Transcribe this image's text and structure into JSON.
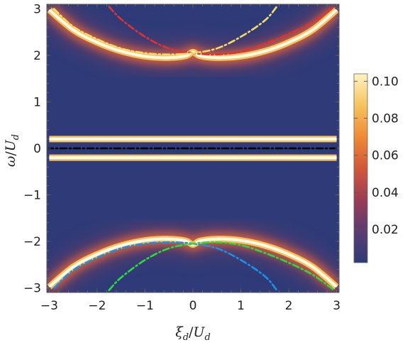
{
  "chart_data": {
    "type": "heatmap",
    "title": "",
    "xlabel": {
      "main": "ξ",
      "sub": "d",
      "slash": "/",
      "main2": "U",
      "sub2": "d"
    },
    "ylabel": {
      "main": "ω",
      "sub": "",
      "slash": "/",
      "main2": "U",
      "sub2": "d"
    },
    "xlim": [
      -3.05,
      3.05
    ],
    "ylim": [
      -3.1,
      3.1
    ],
    "x_ticks": [
      -3,
      -2,
      -1,
      0,
      1,
      2,
      3
    ],
    "x_tick_labels": [
      "−3",
      "−2",
      "−1",
      "0",
      "1",
      "2",
      "3"
    ],
    "y_ticks": [
      -3,
      -2,
      -1,
      0,
      1,
      2,
      3
    ],
    "y_tick_labels": [
      "−3",
      "−2",
      "−1",
      "0",
      "1",
      "2",
      "3"
    ],
    "colorbar": {
      "ticks": [
        0.02,
        0.04,
        0.06,
        0.08,
        0.1
      ],
      "tick_labels": [
        "0.02",
        "0.04",
        "0.06",
        "0.08",
        "0.10"
      ],
      "range": [
        0.002,
        0.104
      ],
      "colors": [
        "#2e3b78",
        "#5a3c72",
        "#9a3d55",
        "#d2573a",
        "#ef8a36",
        "#f7c35e",
        "#fff3c2"
      ]
    },
    "background_color": "#2e3b78",
    "bright_bands": [
      {
        "name": "upper",
        "points": [
          [
            -3,
            2.98
          ],
          [
            -2.5,
            2.55
          ],
          [
            -2,
            2.28
          ],
          [
            -1.5,
            2.09
          ],
          [
            -1,
            1.98
          ],
          [
            -0.5,
            1.95
          ],
          [
            -0.15,
            1.99
          ],
          [
            0,
            2.07
          ],
          [
            0.15,
            1.99
          ],
          [
            0.5,
            1.95
          ],
          [
            1,
            1.98
          ],
          [
            1.5,
            2.09
          ],
          [
            2,
            2.28
          ],
          [
            2.5,
            2.55
          ],
          [
            3,
            2.98
          ]
        ]
      },
      {
        "name": "lower",
        "points": [
          [
            -3,
            -2.98
          ],
          [
            -2.5,
            -2.55
          ],
          [
            -2,
            -2.28
          ],
          [
            -1.5,
            -2.09
          ],
          [
            -1,
            -1.98
          ],
          [
            -0.5,
            -1.95
          ],
          [
            -0.15,
            -1.99
          ],
          [
            0,
            -2.07
          ],
          [
            0.15,
            -1.99
          ],
          [
            0.5,
            -1.95
          ],
          [
            1,
            -1.98
          ],
          [
            1.5,
            -2.09
          ],
          [
            2,
            -2.28
          ],
          [
            2.5,
            -2.55
          ],
          [
            3,
            -2.98
          ]
        ]
      },
      {
        "name": "upper-flat",
        "points": [
          [
            -3,
            0.2
          ],
          [
            3,
            0.2
          ]
        ]
      },
      {
        "name": "lower-flat",
        "points": [
          [
            -3,
            -0.2
          ],
          [
            3,
            -0.2
          ]
        ]
      }
    ],
    "dashed_curves": [
      {
        "color": "#e03232",
        "style": "dashdot",
        "points": [
          [
            -1.75,
            3.05
          ],
          [
            -1.5,
            2.78
          ],
          [
            -1,
            2.4
          ],
          [
            -0.5,
            2.15
          ],
          [
            0,
            2.05
          ],
          [
            0.5,
            2.02
          ],
          [
            1,
            2.08
          ],
          [
            1.5,
            2.25
          ],
          [
            2,
            2.46
          ],
          [
            2.5,
            2.72
          ],
          [
            2.95,
            3.05
          ]
        ]
      },
      {
        "color": "#f2dc6a",
        "style": "dashdot",
        "points": [
          [
            -2.9,
            3.0
          ],
          [
            -2.5,
            2.62
          ],
          [
            -2,
            2.35
          ],
          [
            -1.5,
            2.15
          ],
          [
            -1,
            2.05
          ],
          [
            -0.5,
            2.02
          ],
          [
            0,
            2.05
          ],
          [
            0.5,
            2.15
          ],
          [
            1,
            2.4
          ],
          [
            1.5,
            2.75
          ],
          [
            1.75,
            3.05
          ]
        ]
      },
      {
        "color": "#1e8fe8",
        "style": "dashdot",
        "points": [
          [
            -2.9,
            -3.0
          ],
          [
            -2.5,
            -2.62
          ],
          [
            -2,
            -2.35
          ],
          [
            -1.5,
            -2.15
          ],
          [
            -1,
            -2.05
          ],
          [
            -0.5,
            -2.02
          ],
          [
            0,
            -2.05
          ],
          [
            0.5,
            -2.15
          ],
          [
            1,
            -2.4
          ],
          [
            1.5,
            -2.75
          ],
          [
            1.75,
            -3.05
          ]
        ]
      },
      {
        "color": "#2fd93a",
        "style": "dashdot",
        "points": [
          [
            -1.75,
            -3.05
          ],
          [
            -1.5,
            -2.78
          ],
          [
            -1,
            -2.4
          ],
          [
            -0.5,
            -2.15
          ],
          [
            0,
            -2.05
          ],
          [
            0.5,
            -2.02
          ],
          [
            1,
            -2.08
          ],
          [
            1.5,
            -2.25
          ],
          [
            2,
            -2.46
          ],
          [
            2.5,
            -2.72
          ],
          [
            2.95,
            -3.05
          ]
        ]
      },
      {
        "color": "#000000",
        "style": "dashdot",
        "points": [
          [
            -3.05,
            0
          ],
          [
            3.05,
            0
          ]
        ]
      }
    ]
  }
}
